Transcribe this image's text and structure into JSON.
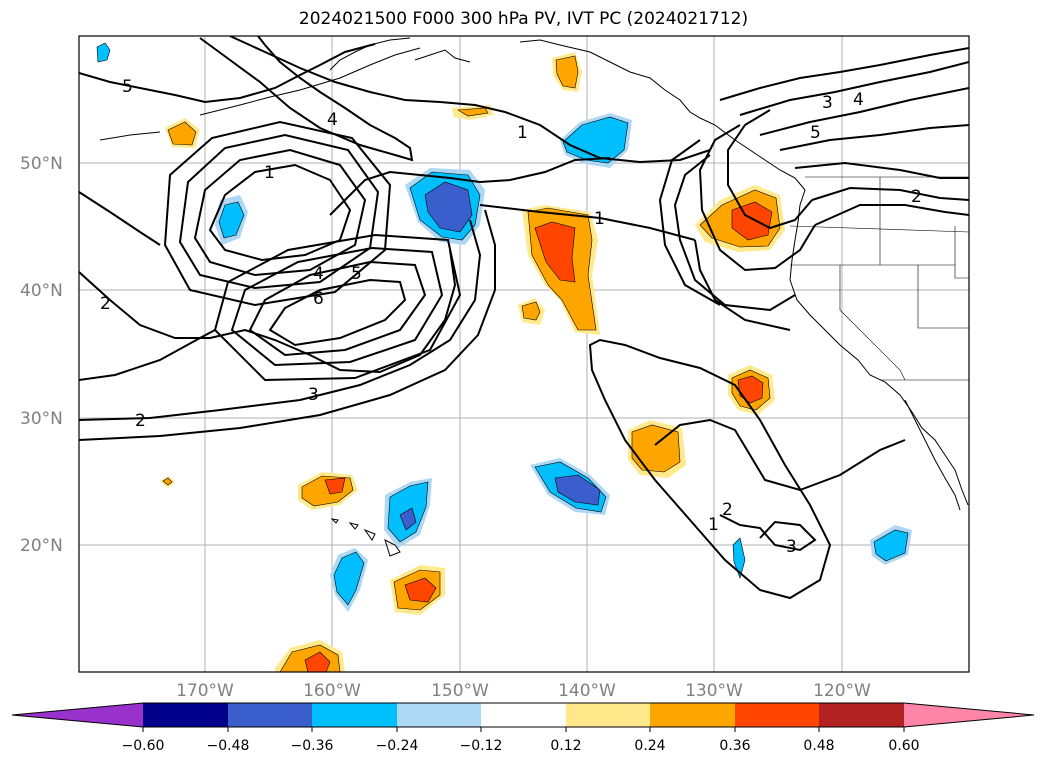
{
  "title": "2024021500 F000 300 hPa PV, IVT PC (2024021712)",
  "lat_labels": [
    "50°N",
    "40°N",
    "30°N",
    "20°N"
  ],
  "lon_labels": [
    "170°W",
    "160°W",
    "150°W",
    "140°W",
    "130°W",
    "120°W"
  ],
  "contour_labels": [
    "5",
    "4",
    "1",
    "4",
    "5",
    "6",
    "2",
    "3",
    "2",
    "1",
    "1",
    "3",
    "4",
    "5",
    "2",
    "2",
    "1",
    "3"
  ],
  "colorbar": {
    "ticks": [
      "−0.60",
      "−0.48",
      "−0.36",
      "−0.24",
      "−0.12",
      "0.12",
      "0.24",
      "0.36",
      "0.48",
      "0.60"
    ],
    "colors": [
      "#9932cc",
      "#00008b",
      "#3a5fcd",
      "#00bfff",
      "#add8f5",
      "#ffffff",
      "#ffe98a",
      "#ffa500",
      "#ff4500",
      "#b22222",
      "#ff85a8"
    ]
  }
}
